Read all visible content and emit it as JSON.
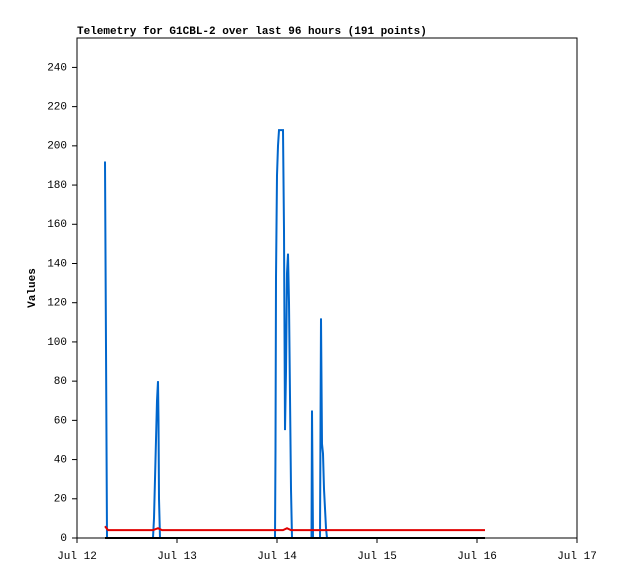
{
  "chart_data": {
    "type": "line",
    "title": "Telemetry for G1CBL-2 over last 96 hours (191 points)",
    "y_label": "Values",
    "xlim": [
      0,
      5
    ],
    "xticks": [
      {
        "value": 0,
        "label": "Jul 12"
      },
      {
        "value": 1,
        "label": "Jul 13"
      },
      {
        "value": 2,
        "label": "Jul 14"
      },
      {
        "value": 3,
        "label": "Jul 15"
      },
      {
        "value": 4,
        "label": "Jul 16"
      },
      {
        "value": 5,
        "label": "Jul 17"
      }
    ],
    "ylim": [
      0,
      255
    ],
    "yticks": [
      0,
      20,
      40,
      60,
      80,
      100,
      120,
      140,
      160,
      180,
      200,
      220,
      240
    ],
    "series": [
      {
        "color": "#0066cc",
        "x": [
          0.28,
          0.29,
          0.3,
          0.76,
          0.77,
          0.78,
          0.79,
          0.8,
          0.81,
          0.815,
          0.82,
          0.83,
          1.98,
          1.985,
          1.99,
          2.0,
          2.01,
          2.02,
          2.06,
          2.07,
          2.08,
          2.09,
          2.1,
          2.11,
          2.12,
          2.13,
          2.14,
          2.15,
          2.345,
          2.35,
          2.36,
          2.43,
          2.435,
          2.44,
          2.45,
          2.46,
          2.47,
          2.48,
          2.49,
          2.5,
          4.08
        ],
        "values": [
          192,
          97,
          0,
          0,
          10,
          30,
          50,
          70,
          80,
          60,
          20,
          0,
          0,
          45,
          133,
          185,
          200,
          208,
          208,
          157,
          55,
          85,
          135,
          145,
          120,
          72,
          25,
          0,
          0,
          65,
          0,
          0,
          57,
          112,
          48,
          43,
          25,
          15,
          5,
          0,
          0
        ]
      },
      {
        "color": "#000000",
        "x": [
          0.28,
          4.08
        ],
        "values": [
          0,
          0
        ]
      },
      {
        "color": "#e00000",
        "x": [
          0.28,
          0.31,
          0.76,
          0.81,
          0.85,
          2.06,
          2.1,
          2.14,
          4.08
        ],
        "values": [
          6,
          4,
          4,
          5,
          4,
          4,
          5,
          4,
          4
        ]
      }
    ]
  }
}
